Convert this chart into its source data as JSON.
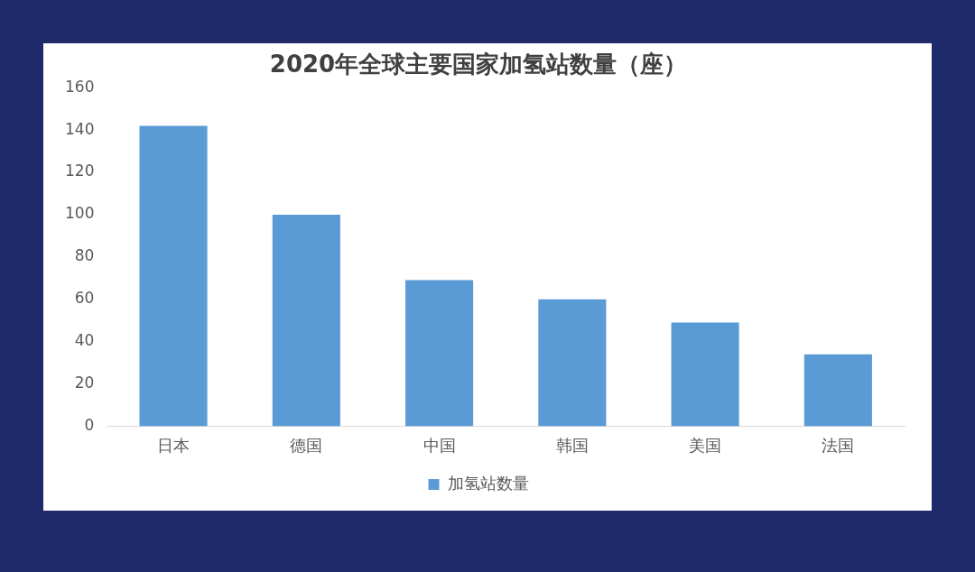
{
  "chart_data": {
    "type": "bar",
    "title": "2020年全球主要国家加氢站数量（座）",
    "categories": [
      "日本",
      "德国",
      "中国",
      "韩国",
      "美国",
      "法国"
    ],
    "series": [
      {
        "name": "加氢站数量",
        "color": "#5b9bd5",
        "values": [
          142,
          100,
          69,
          60,
          49,
          34
        ]
      }
    ],
    "ylim": [
      0,
      160
    ],
    "yticks": [
      0,
      20,
      40,
      60,
      80,
      100,
      120,
      140,
      160
    ],
    "grid": false,
    "legend": "bottom"
  }
}
